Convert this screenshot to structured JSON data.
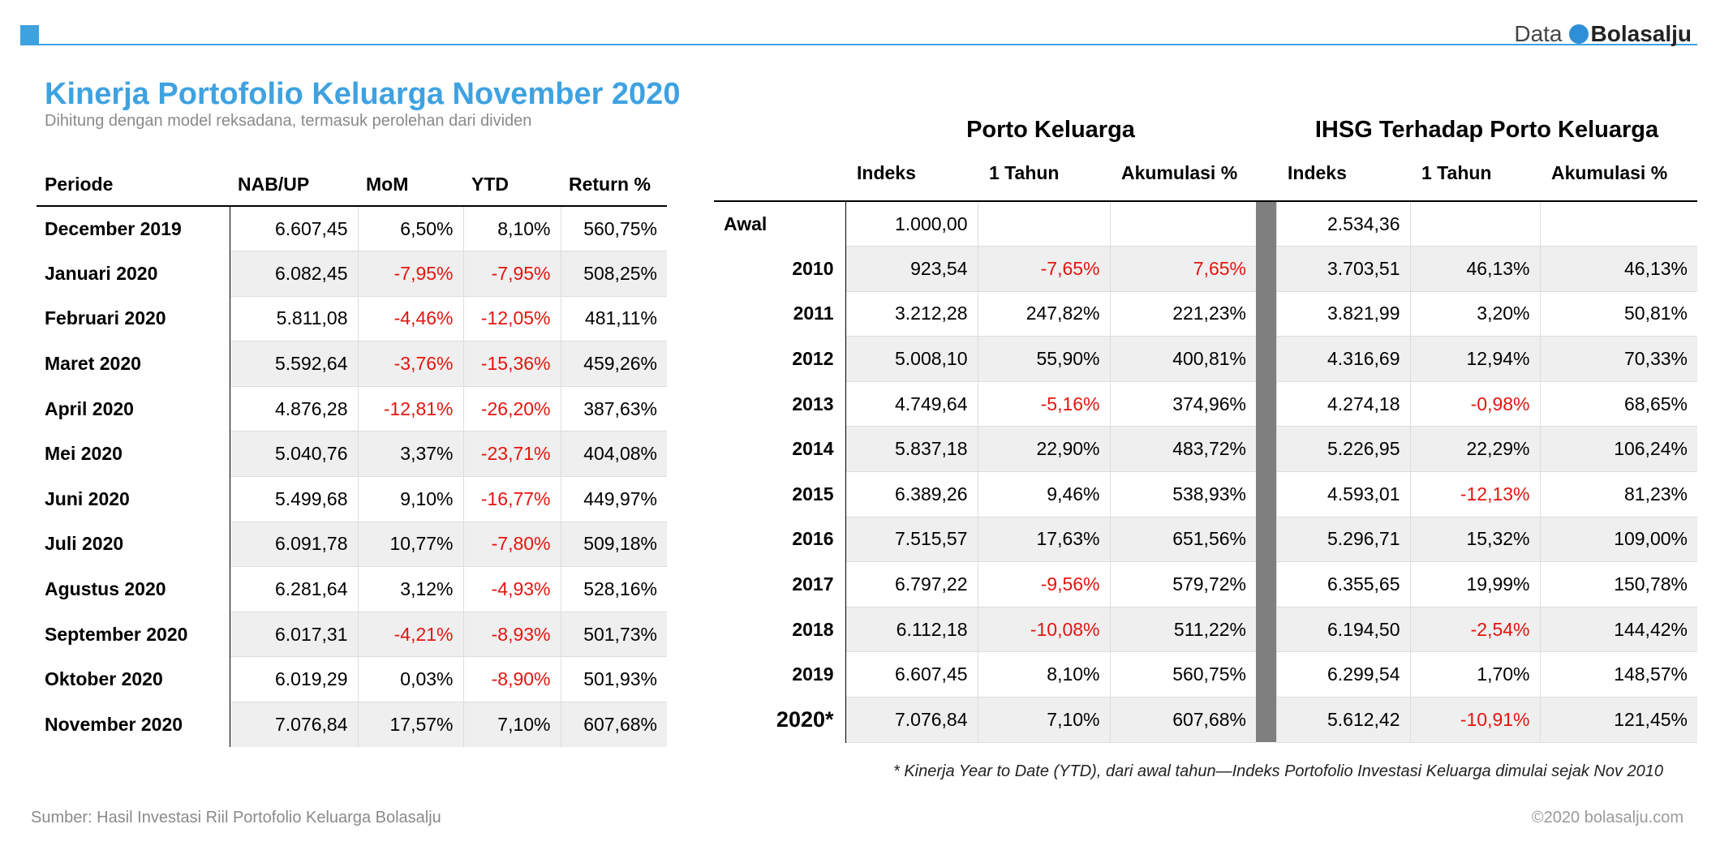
{
  "brand": {
    "prefix": "Data",
    "name": "Bolasalju"
  },
  "title": "Kinerja Portofolio Keluarga November 2020",
  "subtitle": "Dihitung dengan model reksadana, termasuk perolehan dari dividen",
  "monthly": {
    "headers": [
      "Periode",
      "NAB/UP",
      "MoM",
      "YTD",
      "Return %"
    ],
    "rows": [
      [
        "December 2019",
        "6.607,45",
        "6,50%",
        "8,10%",
        "560,75%"
      ],
      [
        "Januari 2020",
        "6.082,45",
        "-7,95%",
        "-7,95%",
        "508,25%"
      ],
      [
        "Februari 2020",
        "5.811,08",
        "-4,46%",
        "-12,05%",
        "481,11%"
      ],
      [
        "Maret 2020",
        "5.592,64",
        "-3,76%",
        "-15,36%",
        "459,26%"
      ],
      [
        "April 2020",
        "4.876,28",
        "-12,81%",
        "-26,20%",
        "387,63%"
      ],
      [
        "Mei 2020",
        "5.040,76",
        "3,37%",
        "-23,71%",
        "404,08%"
      ],
      [
        "Juni 2020",
        "5.499,68",
        "9,10%",
        "-16,77%",
        "449,97%"
      ],
      [
        "Juli 2020",
        "6.091,78",
        "10,77%",
        "-7,80%",
        "509,18%"
      ],
      [
        "Agustus 2020",
        "6.281,64",
        "3,12%",
        "-4,93%",
        "528,16%"
      ],
      [
        "September 2020",
        "6.017,31",
        "-4,21%",
        "-8,93%",
        "501,73%"
      ],
      [
        "Oktober 2020",
        "6.019,29",
        "0,03%",
        "-8,90%",
        "501,93%"
      ],
      [
        "November 2020",
        "7.076,84",
        "17,57%",
        "7,10%",
        "607,68%"
      ]
    ]
  },
  "yearly": {
    "section_porto": "Porto Keluarga",
    "section_ihsg": "IHSG Terhadap Porto Keluarga",
    "headers": [
      "Indeks",
      "1 Tahun",
      "Akumulasi %",
      "Indeks",
      "1 Tahun",
      "Akumulasi %"
    ],
    "rows": [
      [
        "Awal",
        "1.000,00",
        "",
        "",
        "2.534,36",
        "",
        ""
      ],
      [
        "2010",
        "923,54",
        "-7,65%",
        "7,65%",
        "3.703,51",
        "46,13%",
        "46,13%"
      ],
      [
        "2011",
        "3.212,28",
        "247,82%",
        "221,23%",
        "3.821,99",
        "3,20%",
        "50,81%"
      ],
      [
        "2012",
        "5.008,10",
        "55,90%",
        "400,81%",
        "4.316,69",
        "12,94%",
        "70,33%"
      ],
      [
        "2013",
        "4.749,64",
        "-5,16%",
        "374,96%",
        "4.274,18",
        "-0,98%",
        "68,65%"
      ],
      [
        "2014",
        "5.837,18",
        "22,90%",
        "483,72%",
        "5.226,95",
        "22,29%",
        "106,24%"
      ],
      [
        "2015",
        "6.389,26",
        "9,46%",
        "538,93%",
        "4.593,01",
        "-12,13%",
        "81,23%"
      ],
      [
        "2016",
        "7.515,57",
        "17,63%",
        "651,56%",
        "5.296,71",
        "15,32%",
        "109,00%"
      ],
      [
        "2017",
        "6.797,22",
        "-9,56%",
        "579,72%",
        "6.355,65",
        "19,99%",
        "150,78%"
      ],
      [
        "2018",
        "6.112,18",
        "-10,08%",
        "511,22%",
        "6.194,50",
        "-2,54%",
        "144,42%"
      ],
      [
        "2019",
        "6.607,45",
        "8,10%",
        "560,75%",
        "6.299,54",
        "1,70%",
        "148,57%"
      ],
      [
        "2020*",
        "7.076,84",
        "7,10%",
        "607,68%",
        "5.612,42",
        "-10,91%",
        "121,45%"
      ]
    ],
    "red_cells": [
      [
        1,
        3
      ]
    ]
  },
  "note": "* Kinerja Year to Date (YTD), dari awal tahun—Indeks Portofolio Investasi Keluarga dimulai sejak Nov 2010",
  "source": "Sumber: Hasil Investasi Riil Portofolio Keluarga Bolasalju",
  "copyright": "©2020 bolasalju.com",
  "colors": {
    "accent": "#3fa2e0",
    "negative": "#e3150e",
    "band": "#efefef",
    "separator": "#7f7f7f"
  }
}
